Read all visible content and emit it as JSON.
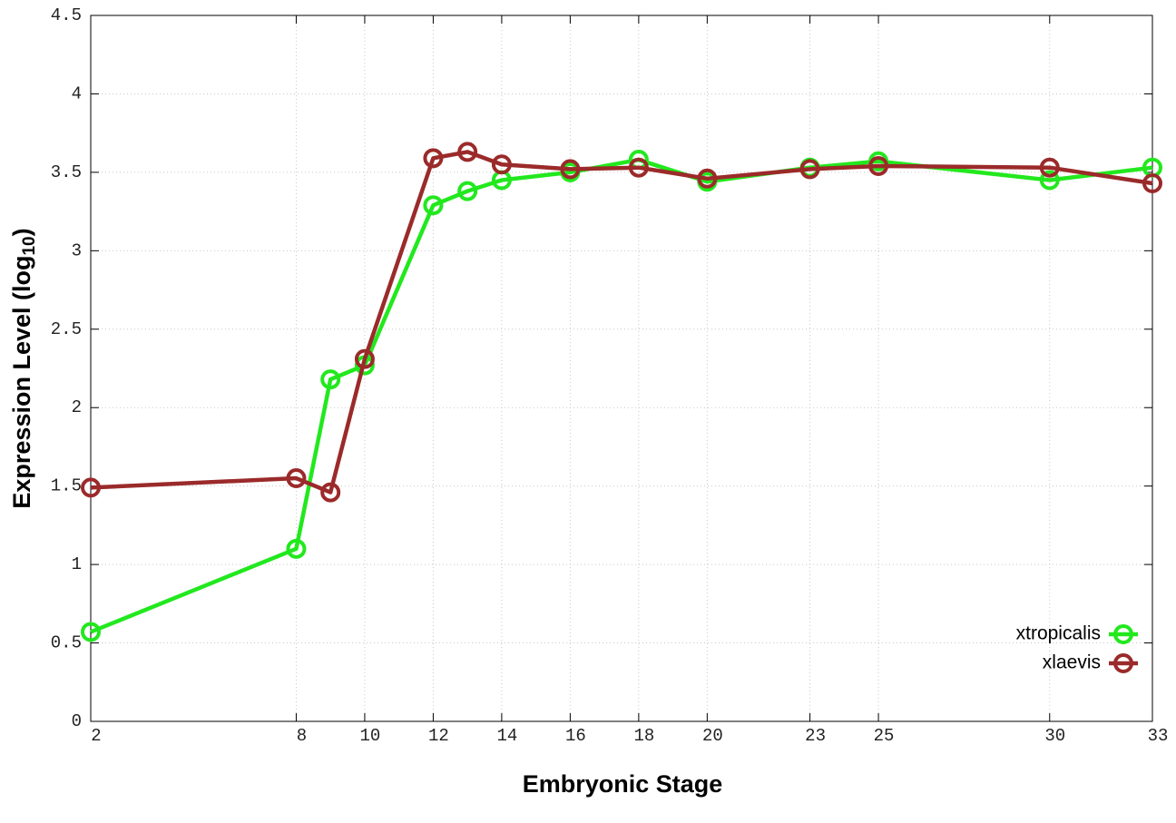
{
  "chart_data": {
    "type": "line",
    "x_label": "Embryonic Stage",
    "y_label": [
      "Expression Level (log",
      "10",
      ")"
    ],
    "x": [
      2,
      8,
      9,
      10,
      12,
      13,
      14,
      16,
      18,
      20,
      23,
      25,
      30,
      33
    ],
    "series": [
      {
        "name": "xtropicalis",
        "color": "#22e81e",
        "values": [
          0.57,
          1.1,
          2.18,
          2.27,
          3.29,
          3.38,
          3.45,
          3.5,
          3.58,
          3.44,
          3.53,
          3.57,
          3.45,
          3.53
        ]
      },
      {
        "name": "xlaevis",
        "color": "#9b2a2a",
        "values": [
          1.49,
          1.55,
          1.46,
          2.31,
          3.59,
          3.63,
          3.55,
          3.52,
          3.53,
          3.46,
          3.52,
          3.54,
          3.53,
          3.43
        ]
      }
    ],
    "xlim": [
      2,
      33
    ],
    "xticks": [
      2,
      8,
      10,
      12,
      14,
      16,
      18,
      20,
      23,
      25,
      30,
      33
    ],
    "ylim": [
      0,
      4.5
    ],
    "yticks": [
      0,
      0.5,
      1,
      1.5,
      2,
      2.5,
      3,
      3.5,
      4,
      4.5
    ],
    "grid": true,
    "legend": "lower right"
  }
}
